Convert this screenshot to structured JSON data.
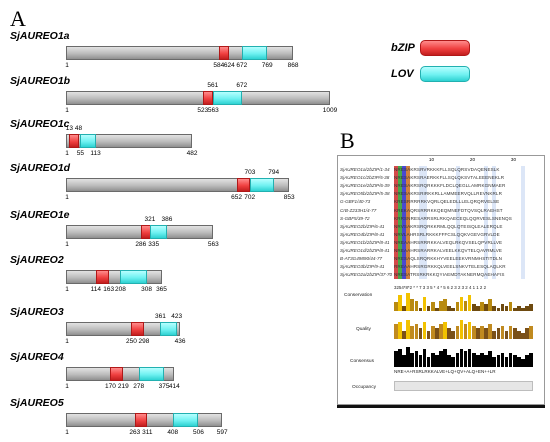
{
  "panel_a_label": "A",
  "panel_b_label": "B",
  "legend": {
    "bzip_label": "bZIP",
    "lov_label": "LOV",
    "bzip_color": "#e83a3a",
    "lov_color": "#5eeaea"
  },
  "proteins": [
    {
      "name": "SjAUREO1a",
      "length": 868,
      "bzip": [
        584,
        624
      ],
      "lov": [
        672,
        769
      ],
      "labels_above": [],
      "labels_below": [
        "1",
        "584",
        "624",
        "672",
        "769",
        "868"
      ]
    },
    {
      "name": "SjAUREO1b",
      "length": 1009,
      "bzip": [
        523,
        563
      ],
      "lov": [
        561,
        672
      ],
      "labels_above": [
        "561",
        "672"
      ],
      "labels_below": [
        "1",
        "523",
        "563",
        "1009"
      ]
    },
    {
      "name": "SjAUREO1c",
      "length": 482,
      "bzip": [
        13,
        48
      ],
      "lov": [
        55,
        113
      ],
      "labels_above": [
        "13",
        "48"
      ],
      "labels_below": [
        "1",
        "55",
        "113",
        "482"
      ]
    },
    {
      "name": "SjAUREO1d",
      "length": 853,
      "bzip": [
        652,
        702
      ],
      "lov": [
        703,
        794
      ],
      "labels_above": [
        "703",
        "794"
      ],
      "labels_below": [
        "1",
        "652",
        "702",
        "853"
      ]
    },
    {
      "name": "SjAUREO1e",
      "length": 563,
      "bzip": [
        286,
        335
      ],
      "lov": [
        321,
        386
      ],
      "labels_above": [
        "321",
        "386"
      ],
      "labels_below": [
        "1",
        "286",
        "335",
        "563"
      ]
    },
    {
      "name": "SjAUREO2",
      "length": 365,
      "bzip": [
        114,
        163
      ],
      "lov": [
        208,
        308
      ],
      "labels_above": [],
      "labels_below": [
        "1",
        "114",
        "163",
        "208",
        "308",
        "365"
      ]
    },
    {
      "name": "SjAUREO3",
      "length": 436,
      "bzip": [
        250,
        298
      ],
      "lov": [
        361,
        423
      ],
      "labels_above": [
        "361",
        "423"
      ],
      "labels_below": [
        "1",
        "250",
        "298",
        "436"
      ]
    },
    {
      "name": "SjAUREO4",
      "length": 414,
      "bzip": [
        170,
        219
      ],
      "lov": [
        278,
        375
      ],
      "labels_above": [],
      "labels_below": [
        "1",
        "170",
        "219",
        "278",
        "375",
        "414"
      ]
    },
    {
      "name": "SjAUREO5",
      "length": 597,
      "bzip": [
        263,
        311
      ],
      "lov": [
        408,
        506
      ],
      "labels_above": [],
      "labels_below": [
        "1",
        "263",
        "311",
        "408",
        "506",
        "597"
      ]
    }
  ],
  "alignment": {
    "ruler": [
      "10",
      "20",
      "30"
    ],
    "rows": [
      {
        "label": "SjAUREO1a/2bZIP/1-34",
        "seq": "NRESAKRSRVRKKKFLLSQLQRSVDAQENESLK"
      },
      {
        "label": "SjAUREO1c/2bZIP/5-38",
        "seq": "NRESAKRSRAERKKFLLSQLQKSVTALEEENEKLR"
      },
      {
        "label": "SjAUREO1e/2bZIP/6-39",
        "seq": "NRESAKRSRQRKKKFLDCLQEGLLAMRKGNMAER"
      },
      {
        "label": "SjAUREO5b/2bZIP/5-38",
        "seq": "NRESAKRSRIRKKRLLAMMEERVQLLREVNKRLR"
      },
      {
        "label": "G-GBF1/40-73",
        "seq": "KRESRRRRRKVQRLQELEDLLLELQRQRVELSE"
      },
      {
        "label": "CrB-Z233H1/4-77",
        "seq": "KREKAQRSRRRKKQEQMNEFDTQVSQLRAEHST"
      },
      {
        "label": "S-GBF5/39-72",
        "seq": "KRRSNRESARRSRLRKQAECEQLQQRVESLSNENQS"
      },
      {
        "label": "SjAUREO2b/ZIP/6-41",
        "seq": "NRVSAKRSRQRKKRMLQQLQTEISQLEALERQLE"
      },
      {
        "label": "SjAUREO4b/ZIP/8-41",
        "seq": "NRVLAHRSRLRKKKFFFCSLQQKVGEVGRVLDE"
      },
      {
        "label": "SjAUREO1b/2bZIP/8-41",
        "seq": "NREAAHRSRRRKKALVEQLRKQVSELQPVRLLVE"
      },
      {
        "label": "SjAUREO1d/2bZIP/8-41",
        "seq": "NREAAHRSRARRKALVEELKKQVTELQAVRMLVE"
      },
      {
        "label": "B-AT3G49890/44-77",
        "seq": "NRESAQLSRQRKKHYVEELEEKVRNMHSTITDLN"
      },
      {
        "label": "SjAUREO3b/ZIP/9-41",
        "seq": "RREAAHRSRGRKKQLVEELSNKVTELESQLAQLKR"
      },
      {
        "label": "SjAUREO2a/2bZIP/37-70",
        "seq": "NRESATRSRKRKKQYIAEMDTAKNERMQAEHAFIS"
      }
    ],
    "conservation_label": "Conservation",
    "conservation_digits": "3254*8*2 * * 7 3 3 5 * 4 * 5 6 2 3 2 3 2 4 1 1 2 2",
    "quality_label": "Quality",
    "consensus_label": "Consensus",
    "consensus_seq": "NRE+A+RSRLRKKALVE+LQ+QV+ALQ+EN++LR",
    "occupancy_label": "Occupancy",
    "conservation_levels": [
      0.5,
      0.9,
      0.3,
      1.0,
      0.7,
      0.6,
      0.2,
      0.8,
      0.3,
      0.5,
      0.2,
      0.6,
      0.7,
      0.3,
      0.2,
      0.5,
      0.8,
      0.6,
      0.9,
      0.4,
      0.3,
      0.5,
      0.4,
      0.7,
      0.3,
      0.2,
      0.4,
      0.3,
      0.5,
      0.2,
      0.3,
      0.2,
      0.3,
      0.4
    ],
    "quality_levels": [
      0.7,
      0.8,
      0.4,
      0.9,
      0.6,
      0.7,
      0.5,
      0.8,
      0.4,
      0.6,
      0.5,
      0.7,
      0.8,
      0.5,
      0.4,
      0.6,
      0.9,
      0.7,
      0.8,
      0.6,
      0.5,
      0.6,
      0.5,
      0.7,
      0.4,
      0.5,
      0.6,
      0.4,
      0.6,
      0.5,
      0.4,
      0.3,
      0.5,
      0.6
    ],
    "consensus_levels": [
      0.8,
      0.9,
      0.6,
      1.0,
      0.7,
      0.8,
      0.6,
      0.9,
      0.5,
      0.7,
      0.6,
      0.8,
      0.9,
      0.6,
      0.5,
      0.7,
      0.9,
      0.8,
      0.9,
      0.7,
      0.6,
      0.7,
      0.6,
      0.8,
      0.5,
      0.6,
      0.7,
      0.5,
      0.7,
      0.6,
      0.5,
      0.4,
      0.6,
      0.7
    ]
  }
}
